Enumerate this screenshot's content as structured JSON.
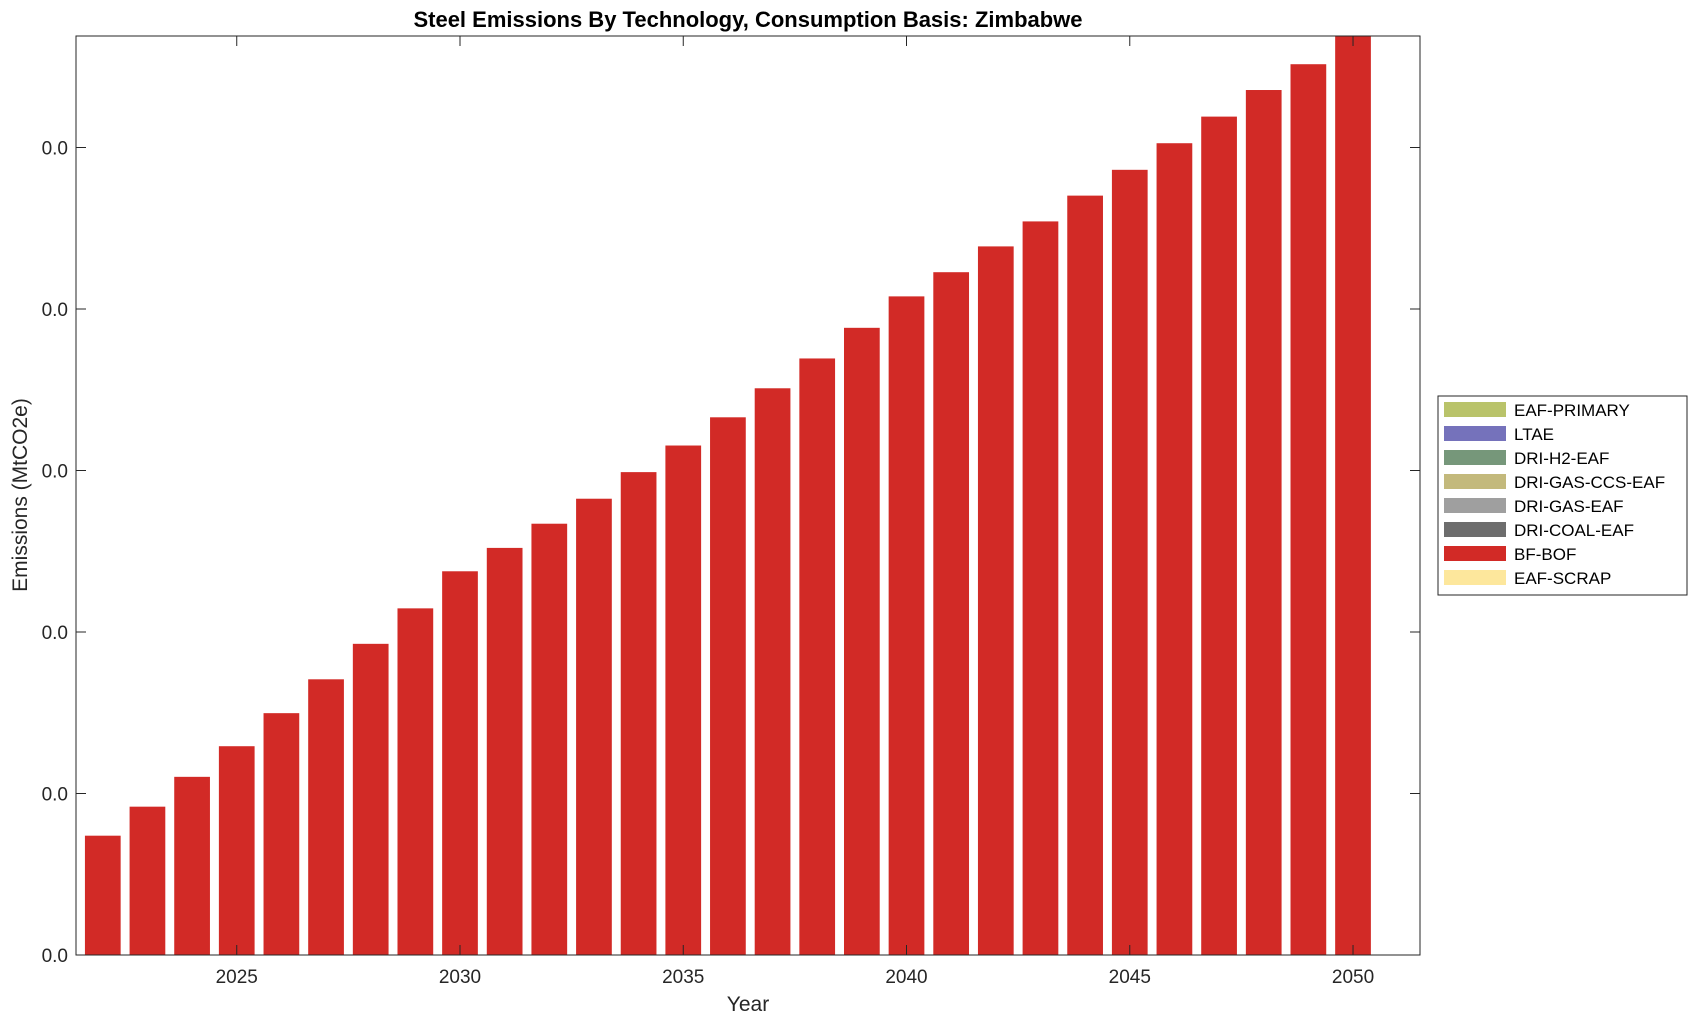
{
  "chart_data": {
    "type": "bar",
    "stacked": true,
    "title": "Steel Emissions By Technology, Consumption Basis: Zimbabwe",
    "xlabel": "Year",
    "ylabel": "Emissions (MtCO2e)",
    "x": [
      2022,
      2023,
      2024,
      2025,
      2026,
      2027,
      2028,
      2029,
      2030,
      2031,
      2032,
      2033,
      2034,
      2035,
      2036,
      2037,
      2038,
      2039,
      2040,
      2041,
      2042,
      2043,
      2044,
      2045,
      2046,
      2047,
      2048,
      2049,
      2050
    ],
    "x_ticks": [
      "2025",
      "2030",
      "2035",
      "2040",
      "2045",
      "2050"
    ],
    "y_tick_labels": [
      "0.0",
      "0.0",
      "0.0",
      "0.0",
      "0.0",
      "0.0",
      "0.0"
    ],
    "ylim": [
      0,
      0.0114
    ],
    "grid": false,
    "legend_position": "right",
    "series": [
      {
        "name": "EAF-PRIMARY",
        "color": "#b9c36a",
        "values": [
          0,
          0,
          0,
          0,
          0,
          0,
          0,
          0,
          0,
          0,
          0,
          0,
          0,
          0,
          0,
          0,
          0,
          0,
          0,
          0,
          0,
          0,
          0,
          0,
          0,
          0,
          0,
          0,
          0
        ]
      },
      {
        "name": "LTAE",
        "color": "#7572bb",
        "values": [
          0,
          0,
          0,
          0,
          0,
          0,
          0,
          0,
          0,
          0,
          0,
          0,
          0,
          0,
          0,
          0,
          0,
          0,
          0,
          0,
          0,
          0,
          0,
          0,
          0,
          0,
          0,
          0,
          0
        ]
      },
      {
        "name": "DRI-H2-EAF",
        "color": "#76977a",
        "values": [
          0,
          0,
          0,
          0,
          0,
          0,
          0,
          0,
          0,
          0,
          0,
          0,
          0,
          0,
          0,
          0,
          0,
          0,
          0,
          0,
          0,
          0,
          0,
          0,
          0,
          0,
          0,
          0,
          0
        ]
      },
      {
        "name": "DRI-GAS-CCS-EAF",
        "color": "#c3b97c",
        "values": [
          0,
          0,
          0,
          0,
          0,
          0,
          0,
          0,
          0,
          0,
          0,
          0,
          0,
          0,
          0,
          0,
          0,
          0,
          0,
          0,
          0,
          0,
          0,
          0,
          0,
          0,
          0,
          0,
          0
        ]
      },
      {
        "name": "DRI-GAS-EAF",
        "color": "#9f9f9f",
        "values": [
          0,
          0,
          0,
          0,
          0,
          0,
          0,
          0,
          0,
          0,
          0,
          0,
          0,
          0,
          0,
          0,
          0,
          0,
          0,
          0,
          0,
          0,
          0,
          0,
          0,
          0,
          0,
          0,
          0
        ]
      },
      {
        "name": "DRI-COAL-EAF",
        "color": "#6d6d6d",
        "values": [
          0,
          0,
          0,
          0,
          0,
          0,
          0,
          0,
          0,
          0,
          0,
          0,
          0,
          0,
          0,
          0,
          0,
          0,
          0,
          0,
          0,
          0,
          0,
          0,
          0,
          0,
          0,
          0,
          0
        ]
      },
      {
        "name": "BF-BOF",
        "color": "#d22a26",
        "values": [
          0.00148,
          0.00184,
          0.00221,
          0.00259,
          0.003,
          0.00342,
          0.00386,
          0.0043,
          0.00476,
          0.00505,
          0.00535,
          0.00566,
          0.00599,
          0.00632,
          0.00667,
          0.00703,
          0.0074,
          0.00778,
          0.00817,
          0.00847,
          0.00879,
          0.0091,
          0.00942,
          0.00974,
          0.01007,
          0.0104,
          0.01073,
          0.01105,
          0.0114
        ]
      },
      {
        "name": "EAF-SCRAP",
        "color": "#fde79c",
        "values": [
          0,
          0,
          0,
          0,
          0,
          0,
          0,
          0,
          0,
          0,
          0,
          0,
          0,
          0,
          0,
          0,
          0,
          0,
          0,
          0,
          0,
          0,
          0,
          0,
          0,
          0,
          0,
          0,
          0
        ]
      }
    ]
  }
}
